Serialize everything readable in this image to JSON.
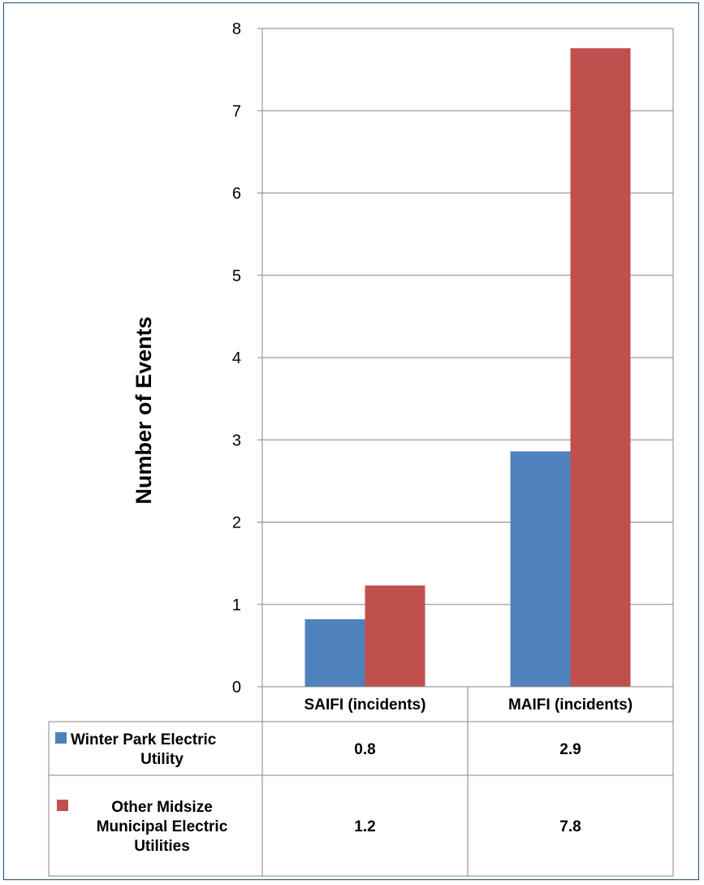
{
  "chart_data": {
    "type": "bar",
    "title": "",
    "xlabel": "",
    "ylabel": "Number of Events",
    "ylim": [
      0,
      8
    ],
    "yticks": [
      "0",
      "1",
      "2",
      "3",
      "4",
      "5",
      "6",
      "7",
      "8"
    ],
    "grid": true,
    "legend": "data-table",
    "categories": [
      "SAIFI (incidents)",
      "MAIFI (incidents)"
    ],
    "series": [
      {
        "name": "Winter Park Electric Utility",
        "name_lines": [
          "Winter Park Electric",
          "Utility"
        ],
        "color": "#4f81bd",
        "values": [
          0.82,
          2.86
        ],
        "labels": [
          "0.8",
          "2.9"
        ]
      },
      {
        "name": "Other Midsize Municipal Electric Utilities",
        "name_lines": [
          "Other Midsize",
          "Municipal Electric",
          "Utilities"
        ],
        "color": "#c0504d",
        "values": [
          1.23,
          7.76
        ],
        "labels": [
          "1.2",
          "7.8"
        ]
      }
    ]
  }
}
